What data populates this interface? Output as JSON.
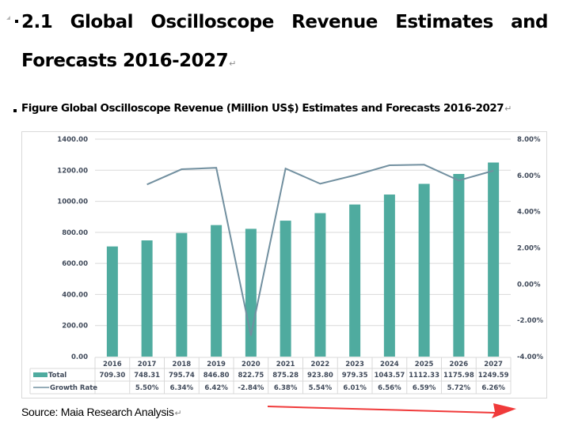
{
  "heading": {
    "line1_words": [
      "2.1",
      "Global",
      "Oscilloscope",
      "Revenue",
      "Estimates",
      "and"
    ],
    "line2": "Forecasts 2016-2027"
  },
  "figure_caption": "Figure Global Oscilloscope Revenue (Million US$) Estimates and Forecasts 2016-2027",
  "paragraph_mark": "↵",
  "source": "Source: Maia Research Analysis",
  "colors": {
    "bar": "#4fab9f",
    "line": "#7290a0",
    "grid": "#d9d9d9",
    "arrow": "#f03a3a",
    "axis_text": "#404a5a"
  },
  "chart_data": {
    "type": "bar",
    "title": "Global Oscilloscope Revenue (Million US$) Estimates and Forecasts 2016-2027",
    "categories": [
      "2016",
      "2017",
      "2018",
      "2019",
      "2020",
      "2021",
      "2022",
      "2023",
      "2024",
      "2025",
      "2026",
      "2027"
    ],
    "series": [
      {
        "name": "Total",
        "type": "bar",
        "axis": "left",
        "values": [
          709.3,
          748.31,
          795.74,
          846.8,
          822.75,
          875.28,
          923.8,
          979.35,
          1043.57,
          1112.33,
          1175.98,
          1249.59
        ],
        "labels": [
          "709.30",
          "748.31",
          "795.74",
          "846.80",
          "822.75",
          "875.28",
          "923.80",
          "979.35",
          "1043.57",
          "1112.33",
          "1175.98",
          "1249.59"
        ]
      },
      {
        "name": "Growth Rate",
        "type": "line",
        "axis": "right",
        "values": [
          null,
          5.5,
          6.34,
          6.42,
          -2.84,
          6.38,
          5.54,
          6.01,
          6.56,
          6.59,
          5.72,
          6.26
        ],
        "labels": [
          "",
          "5.50%",
          "6.34%",
          "6.42%",
          "-2.84%",
          "6.38%",
          "5.54%",
          "6.01%",
          "6.56%",
          "6.59%",
          "5.72%",
          "6.26%"
        ]
      }
    ],
    "left_axis": {
      "ylim": [
        0,
        1400
      ],
      "ticks": [
        "0.00",
        "200.00",
        "400.00",
        "600.00",
        "800.00",
        "1000.00",
        "1200.00",
        "1400.00"
      ],
      "tick_values": [
        0,
        200,
        400,
        600,
        800,
        1000,
        1200,
        1400
      ]
    },
    "right_axis": {
      "ylim": [
        -4,
        8
      ],
      "ticks": [
        "-4.00%",
        "-2.00%",
        "0.00%",
        "2.00%",
        "4.00%",
        "6.00%",
        "8.00%"
      ],
      "tick_values": [
        -4,
        -2,
        0,
        2,
        4,
        6,
        8
      ]
    },
    "grid": true,
    "legend": "data-table-bottom",
    "xlabel": "",
    "ylabel": ""
  }
}
